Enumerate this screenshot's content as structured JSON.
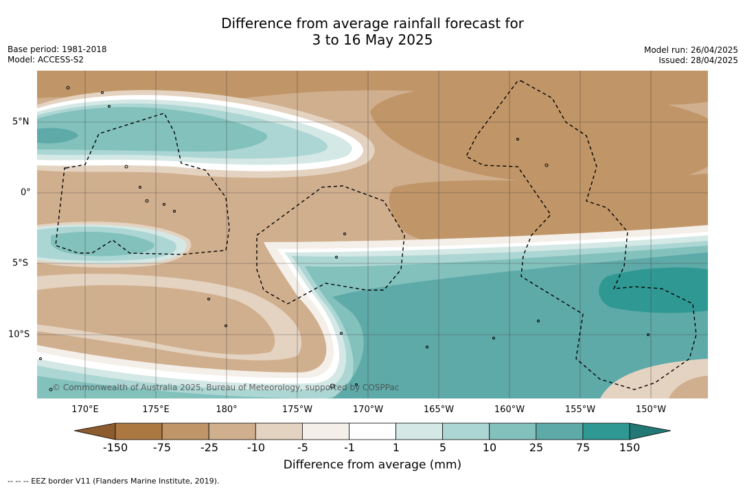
{
  "title": {
    "line1": "Difference from average rainfall forecast for",
    "line2": "3 to 16 May 2025"
  },
  "meta_left": {
    "base_period": "Base period: 1981-2018",
    "model": "Model: ACCESS-S2"
  },
  "meta_right": {
    "model_run": "Model run: 26/04/2025",
    "issued": "Issued: 28/04/2025"
  },
  "map": {
    "copyright": "© Commonwealth of Australia 2025, Bureau of Meteorology, supported by COSPPac",
    "lon_labels": [
      "170°E",
      "175°E",
      "180°",
      "175°W",
      "170°W",
      "165°W",
      "160°W",
      "155°W",
      "150°W"
    ],
    "lat_labels": [
      "5°N",
      "0°",
      "5°S",
      "10°S"
    ],
    "colors": {
      "b150": "#ab7842",
      "b75": "#c09567",
      "b25": "#d0af8e",
      "b10": "#e4d3c1",
      "b5": "#f4efe8",
      "b1": "#ffffff",
      "g1": "#d4e8e6",
      "g5": "#acd6d3",
      "g10": "#83c1bd",
      "g25": "#5eaaa8",
      "g75": "#2f9893"
    }
  },
  "colorbar": {
    "ticks": [
      "-150",
      "-75",
      "-25",
      "-10",
      "-5",
      "-1",
      "1",
      "5",
      "10",
      "25",
      "75",
      "150"
    ],
    "colors": [
      "#ab7842",
      "#c09567",
      "#d0af8e",
      "#e4d3c1",
      "#f4efe8",
      "#ffffff",
      "#d4e8e6",
      "#acd6d3",
      "#83c1bd",
      "#5eaaa8",
      "#2f9893"
    ],
    "extend_low": "#8c5c2e",
    "extend_high": "#217874",
    "label": "Difference from average (mm)"
  },
  "footer": "--  --  -- EEZ border V11 (Flanders Marine Institute, 2019)."
}
